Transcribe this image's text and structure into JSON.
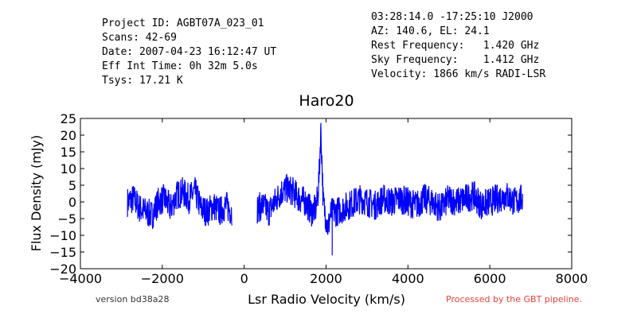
{
  "header": {
    "left": [
      "Project ID: AGBT07A_023_01",
      "Scans: 42-69",
      "Date: 2007-04-23 16:12:47 UT",
      "Eff Int Time: 0h 32m 5.0s",
      "Tsys: 17.21 K"
    ],
    "right": [
      "03:28:14.0 -17:25:10 J2000",
      "AZ: 140.6, EL: 24.1",
      "Rest Frequency:   1.420 GHz",
      "Sky Frequency:    1.412 GHz",
      "Velocity: 1866 km/s RADI-LSR"
    ]
  },
  "footer": {
    "version": "version bd38a28",
    "pipeline": "Processed by the GBT pipeline.",
    "pipeline_color": "#e8413b"
  },
  "chart_data": {
    "type": "line",
    "title": "Haro20",
    "xlabel": "Lsr Radio Velocity (km/s)",
    "ylabel": "Flux Density (mJy)",
    "xlim": [
      -4000,
      8000
    ],
    "ylim": [
      -20,
      25
    ],
    "xticks": [
      -4000,
      -2000,
      0,
      2000,
      4000,
      6000,
      8000
    ],
    "yticks": [
      -20,
      -15,
      -10,
      -5,
      0,
      5,
      10,
      15,
      20,
      25
    ],
    "series_color": "#0000ff",
    "grid": false,
    "series": [
      {
        "segments": [
          {
            "x": [
              -2850,
              -2700,
              -2550,
              -2400,
              -2250,
              -2100,
              -1950,
              -1800,
              -1650,
              -1500,
              -1350,
              -1200,
              -1050,
              -900,
              -750,
              -600,
              -450,
              -300
            ],
            "y": [
              0,
              1,
              -2,
              -3,
              -4,
              0,
              1,
              -2,
              2,
              3,
              1,
              3,
              -2,
              -3,
              -1,
              -3,
              -1,
              -3
            ]
          },
          {
            "x": [
              320,
              450,
              600,
              750,
              900,
              1050,
              1200,
              1350,
              1500,
              1650,
              1750,
              1800,
              1840,
              1870,
              1890,
              1910,
              1930,
              1960,
              2000,
              2050,
              2100,
              2150,
              2250,
              2400,
              2550,
              2700,
              2850,
              3000,
              3200,
              3400,
              3600,
              3800,
              4000,
              4200,
              4400,
              4600,
              4800,
              5000,
              5200,
              5400,
              5600,
              5800,
              6000,
              6200,
              6400,
              6600,
              6800
            ],
            "y": [
              -2,
              -1,
              -3,
              0,
              3,
              4,
              3,
              1,
              0,
              -3,
              -2,
              2,
              10,
              22,
              16,
              8,
              0,
              -2,
              -5,
              -8,
              -4,
              -3,
              -3,
              -2,
              -1,
              0,
              1,
              0,
              -1,
              1,
              0,
              1,
              0,
              -1,
              1,
              0,
              -2,
              1,
              0,
              1,
              2,
              -1,
              0,
              1,
              2,
              0,
              1
            ]
          }
        ]
      }
    ]
  }
}
